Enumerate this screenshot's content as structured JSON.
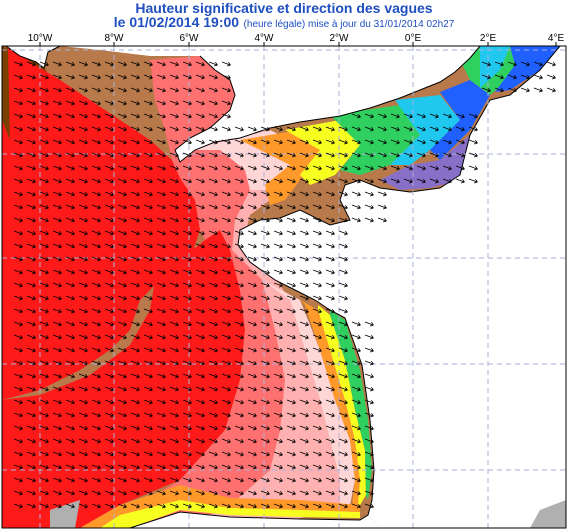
{
  "header": {
    "title": "Hauteur significative et direction des vagues",
    "date_line": "le 01/02/2014 19:00",
    "update_note": "(heure légale) mise à jour du 31/01/2014 02h27"
  },
  "axis": {
    "longitude_labels": [
      "10°W",
      "8°W",
      "6°W",
      "4°W",
      "2°W",
      "0°E",
      "2°E",
      "4°E"
    ]
  },
  "colors": {
    "very_high_dark": "#7a4000",
    "high_brown": "#b87a4a",
    "red": "#ff1a1a",
    "light_red": "#ff7070",
    "pink": "#ffb0b0",
    "pale_pink": "#ffd6d6",
    "orange": "#ff9a2a",
    "yellow": "#f6ff20",
    "green": "#30d060",
    "cyan": "#20c8f0",
    "blue": "#2060ff",
    "violet": "#8870c8",
    "land": "#ffffff",
    "grid": "#aab0d8",
    "arrow": "#000000"
  }
}
